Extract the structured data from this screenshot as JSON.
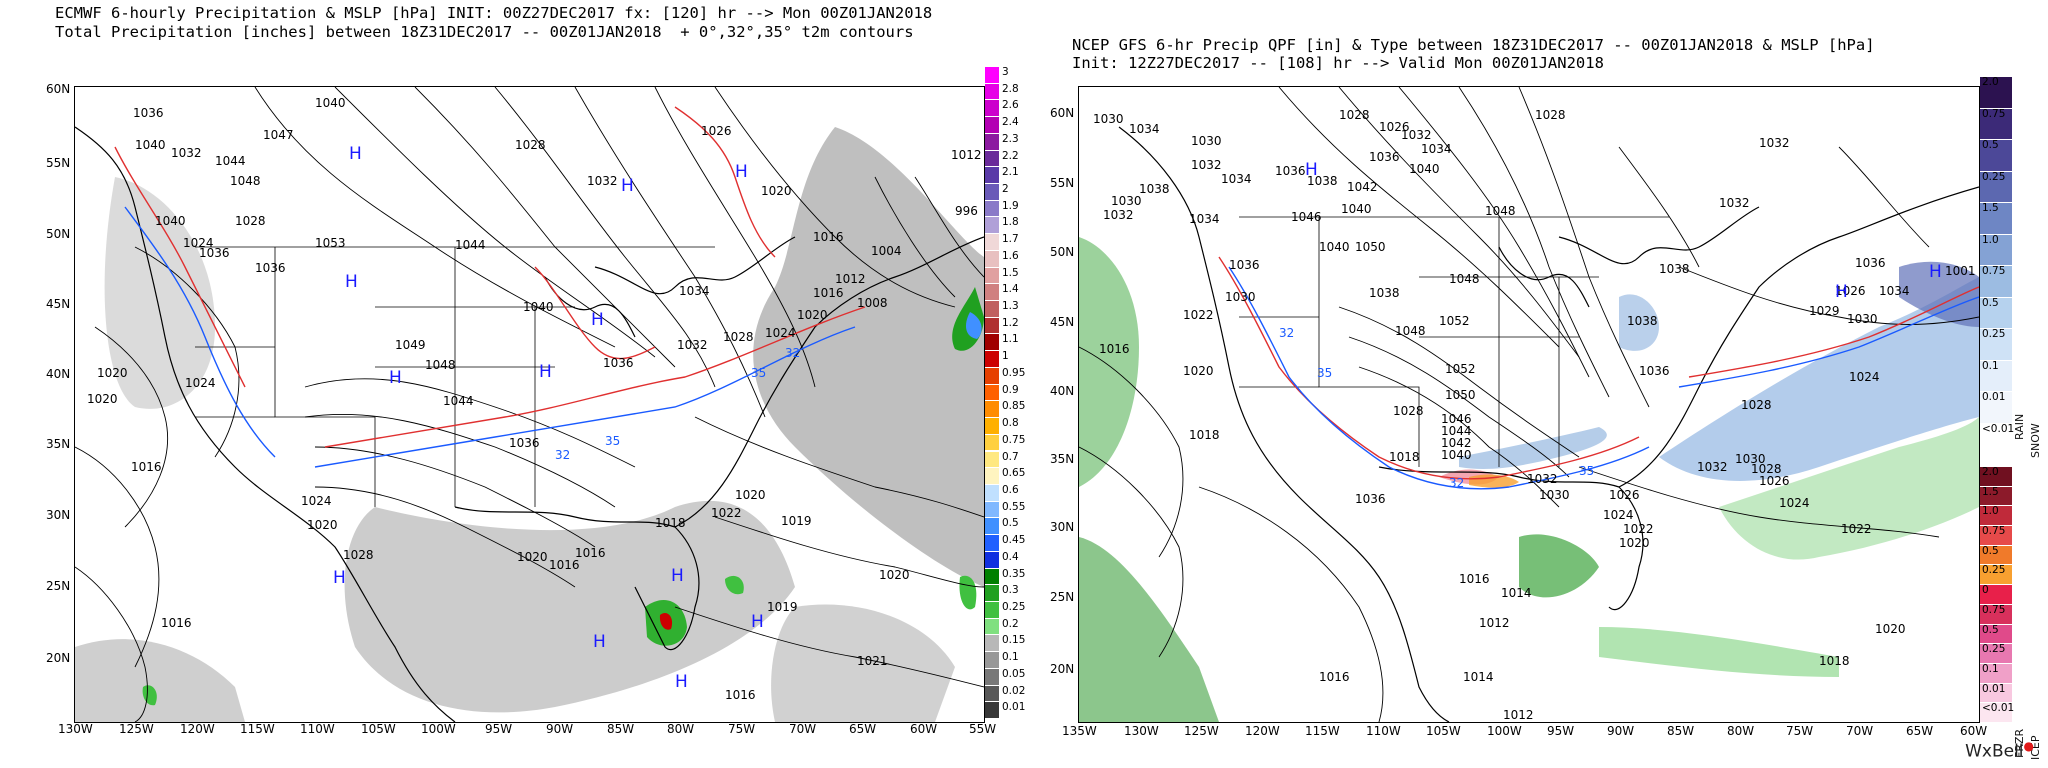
{
  "left": {
    "title_line1": "ECMWF 6-hourly Precipitation & MSLP [hPa] INIT: 00Z27DEC2017 fx: [120] hr --> Mon 00Z01JAN2018",
    "title_line2": "Total Precipitation [inches] between 18Z31DEC2017 -- 00Z01JAN2018  + 0°,32°,35° t2m contours",
    "lat_labels": [
      "60N",
      "55N",
      "50N",
      "45N",
      "40N",
      "35N",
      "30N",
      "25N",
      "20N"
    ],
    "lon_labels": [
      "130W",
      "125W",
      "120W",
      "115W",
      "110W",
      "105W",
      "100W",
      "95W",
      "90W",
      "85W",
      "80W",
      "75W",
      "70W",
      "65W",
      "60W",
      "55W"
    ],
    "legend_labels": [
      "3",
      "2.8",
      "2.6",
      "2.4",
      "2.3",
      "2.2",
      "2.1",
      "2",
      "1.9",
      "1.8",
      "1.7",
      "1.6",
      "1.5",
      "1.4",
      "1.3",
      "1.2",
      "1.1",
      "1",
      "0.95",
      "0.9",
      "0.85",
      "0.8",
      "0.75",
      "0.7",
      "0.65",
      "0.6",
      "0.55",
      "0.5",
      "0.45",
      "0.4",
      "0.35",
      "0.3",
      "0.25",
      "0.2",
      "0.15",
      "0.1",
      "0.05",
      "0.02",
      "0.01"
    ],
    "legend_colors": [
      "#ff00ff",
      "#e600e6",
      "#cc00cc",
      "#b300b3",
      "#8c1aa0",
      "#6a2a9a",
      "#5a3aa8",
      "#6a5ab8",
      "#8a7ac8",
      "#b0a0d8",
      "#f0d8d8",
      "#e8c0c0",
      "#e0a0a0",
      "#d08080",
      "#c06060",
      "#b03030",
      "#a00000",
      "#cc0000",
      "#e64000",
      "#ff6000",
      "#ff8c00",
      "#ffb000",
      "#ffd040",
      "#ffe880",
      "#fff4c0",
      "#c0e0ff",
      "#80b8ff",
      "#4090ff",
      "#2060ff",
      "#1030e0",
      "#008000",
      "#20a020",
      "#40c040",
      "#80e080",
      "#b8b8b8",
      "#989898",
      "#787878",
      "#585858",
      "#383838"
    ],
    "isobar_labels": [
      "1040",
      "1036",
      "1044",
      "1047",
      "1048",
      "1040",
      "1028",
      "1032",
      "1026",
      "1020",
      "1016",
      "1012",
      "1053",
      "1044",
      "1040",
      "1036",
      "1049",
      "1048",
      "1044",
      "1036",
      "1034",
      "1036",
      "1032",
      "1028",
      "1024",
      "1020",
      "1016",
      "1012",
      "1008",
      "1004",
      "996",
      "1028",
      "1020",
      "1024",
      "1020",
      "1016",
      "1024",
      "1020",
      "1019",
      "1016",
      "1018",
      "1022",
      "1020",
      "1016",
      "1019",
      "1020",
      "1021",
      "1016",
      "1020",
      "1016",
      "1032",
      "1028",
      "1024",
      "1036",
      "1040"
    ],
    "highs": [
      "H",
      "H",
      "H",
      "H",
      "H",
      "H",
      "H",
      "H",
      "H",
      "H",
      "H",
      "H"
    ],
    "temp_labels": [
      "35",
      "32",
      "35",
      "32"
    ]
  },
  "right": {
    "title_line1": "NCEP GFS 6-hr Precip QPF [in] & Type between 18Z31DEC2017 -- 00Z01JAN2018 & MSLP [hPa]",
    "title_line2": "Init: 12Z27DEC2017 -- [108] hr --> Valid Mon 00Z01JAN2018",
    "lat_labels": [
      "60N",
      "55N",
      "50N",
      "45N",
      "40N",
      "35N",
      "30N",
      "25N",
      "20N"
    ],
    "lon_labels": [
      "135W",
      "130W",
      "125W",
      "120W",
      "115W",
      "110W",
      "105W",
      "100W",
      "95W",
      "90W",
      "85W",
      "80W",
      "75W",
      "70W",
      "65W",
      "60W"
    ],
    "rain_snow_labels": [
      "2.0",
      "0.75",
      "0.5",
      "0.25",
      "1.5",
      "1.0",
      "0.75",
      "0.5",
      "0.25",
      "0.1",
      "0.01",
      "<0.01"
    ],
    "rain_snow_colors": [
      "#2c1250",
      "#3c2a78",
      "#4c4898",
      "#5c68b0",
      "#6e86c4",
      "#84a2d4",
      "#9cbce2",
      "#b6d2ee",
      "#cfe2f6",
      "#e4eefa",
      "#f2f6fc",
      "#ffffff"
    ],
    "frz_icep_labels": [
      "2.0",
      "1.5",
      "1.0",
      "0.75",
      "0.5",
      "0.25",
      "0",
      "0.75",
      "0.5",
      "0.25",
      "0.1",
      "0.01",
      "<0.01"
    ],
    "frz_icep_colors": [
      "#701020",
      "#8c1a2a",
      "#c02a3a",
      "#e64a4a",
      "#f07a2a",
      "#f8a030",
      "#e8204a",
      "#d8305c",
      "#e04a8a",
      "#e878b0",
      "#f0a0c8",
      "#f8c8e0",
      "#fce6f0"
    ],
    "rain_label": "RAIN",
    "snow_label": "SNOW",
    "frzr_label": "FRZR",
    "icep_label": "ICEP",
    "isobar_labels": [
      "1030",
      "1034",
      "1030",
      "1032",
      "1034",
      "1036",
      "1038",
      "1028",
      "1026",
      "1032",
      "1036",
      "1040",
      "1034",
      "1042",
      "1038",
      "1046",
      "1040",
      "1030",
      "1032",
      "1050",
      "1028",
      "1048",
      "1034",
      "1036",
      "1052",
      "1048",
      "1022",
      "1030",
      "1040",
      "1038",
      "1036",
      "1034",
      "1029",
      "1030",
      "1026",
      "1001",
      "1016",
      "1024",
      "1028",
      "1032",
      "1038",
      "1036",
      "1032",
      "1020",
      "1018",
      "1036",
      "1052",
      "1050",
      "1048",
      "1046",
      "1044",
      "1042",
      "1040",
      "1038",
      "1032",
      "1030",
      "1028",
      "1026",
      "1024",
      "1022",
      "1020",
      "1018",
      "1016",
      "1014",
      "1012",
      "1014",
      "1012",
      "1016",
      "1018",
      "1020",
      "1022",
      "1024",
      "1026",
      "1028",
      "1030",
      "1032"
    ],
    "highs": [
      "H",
      "H",
      "H"
    ],
    "temp_labels": [
      "32",
      "35",
      "32",
      "35"
    ]
  },
  "brand": "WxBell"
}
